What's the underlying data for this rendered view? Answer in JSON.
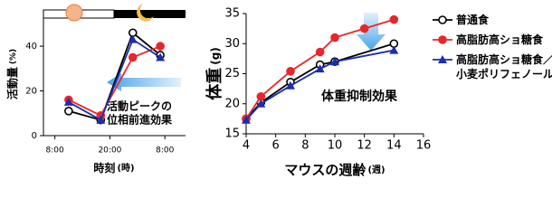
{
  "chart_data": [
    {
      "type": "line",
      "y_label": "活動量",
      "y_unit": "(%)",
      "x_label": "時刻",
      "x_unit": "(時)",
      "annotation": [
        "活動ピークの",
        "位相前進効果"
      ],
      "xlim": [
        5.5,
        36.5
      ],
      "xticks": [
        {
          "value": 8,
          "label": "8:00"
        },
        {
          "value": 20,
          "label": "20:00"
        },
        {
          "value": 32,
          "label": "8:00"
        }
      ],
      "ylim": [
        0,
        55
      ],
      "yticks": [
        0,
        20,
        40
      ],
      "series": [
        {
          "name": "普通食",
          "color": "#000000",
          "marker": "circle-open",
          "x": [
            11,
            18,
            25,
            31
          ],
          "values": [
            11,
            7,
            46,
            36
          ]
        },
        {
          "name": "高脂肪高ショ糖食",
          "color": "#e8262b",
          "marker": "circle",
          "x": [
            11,
            18,
            25,
            31
          ],
          "values": [
            16,
            9,
            35,
            40
          ]
        },
        {
          "name": "高脂肪高ショ糖食／小麦ポリフェノール",
          "color": "#1c2db0",
          "marker": "triangle",
          "x": [
            11,
            18,
            25,
            31
          ],
          "values": [
            15,
            7,
            43,
            35
          ]
        }
      ]
    },
    {
      "type": "line",
      "y_label": "体重",
      "y_unit": "(g)",
      "x_label": "マウスの週齢",
      "x_unit": "(週)",
      "annotation": [
        "体重抑制効果"
      ],
      "xlim": [
        4,
        16
      ],
      "xticks": [
        4,
        6,
        8,
        10,
        12,
        14,
        16
      ],
      "ylim": [
        15,
        35
      ],
      "yticks": [
        15,
        20,
        25,
        30,
        35
      ],
      "legend": "right",
      "series": [
        {
          "name": "普通食",
          "color": "#000000",
          "marker": "circle-open",
          "x": [
            4,
            5,
            7,
            9,
            10,
            14
          ],
          "values": [
            17.5,
            20.2,
            23.6,
            26.5,
            27,
            30
          ]
        },
        {
          "name": "高脂肪高ショ糖食",
          "color": "#e8262b",
          "marker": "circle",
          "x": [
            4,
            5,
            7,
            9,
            10,
            12,
            14
          ],
          "values": [
            17.5,
            21.2,
            25.4,
            28.6,
            31,
            32.5,
            34
          ]
        },
        {
          "name": "高脂肪高ショ糖食／小麦ポリフェノール",
          "color": "#1c2db0",
          "marker": "triangle",
          "x": [
            4,
            5,
            7,
            9,
            10,
            14
          ],
          "values": [
            17.3,
            20,
            23,
            25.8,
            27,
            28.9
          ]
        }
      ]
    }
  ]
}
